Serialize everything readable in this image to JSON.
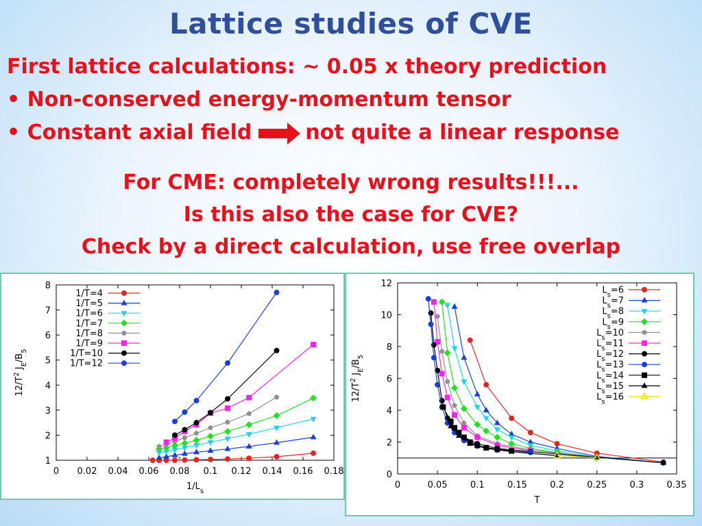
{
  "slide": {
    "title": "Lattice studies of CVE",
    "line1": "First lattice calculations: ~ 0.05 x theory prediction",
    "bullet1": "Non-conserved energy-momentum tensor",
    "bullet2_a": "Constant axial field",
    "bullet2_b": "not quite a linear response",
    "center1": "For CME: completely wrong results!!!...",
    "center2": "Is this also the case for CVE?",
    "center3": "Check by a direct calculation, use free overlap",
    "bullet_symbol": "•",
    "arrow_color": "#e8111b"
  },
  "chart_data": [
    {
      "type": "line",
      "title": "",
      "xlabel": "1/L_s",
      "ylabel": "12/T^2 J_E/B_5",
      "xlim": [
        0,
        0.18
      ],
      "ylim": [
        1,
        8
      ],
      "xticks": [
        0,
        0.02,
        0.04,
        0.06,
        0.08,
        0.1,
        0.12,
        0.14,
        0.16,
        0.18
      ],
      "yticks": [
        1,
        2,
        3,
        4,
        5,
        6,
        7,
        8
      ],
      "legend_position": "top-left",
      "series": [
        {
          "name": "1/T=4",
          "color": "#e0261f",
          "marker": "circle",
          "x": [
            0.0625,
            0.0667,
            0.0714,
            0.0769,
            0.0833,
            0.0909,
            0.1,
            0.1111,
            0.125,
            0.1429,
            0.1667
          ],
          "y": [
            1.0,
            1.0,
            1.0,
            1.0,
            1.01,
            1.02,
            1.03,
            1.05,
            1.08,
            1.14,
            1.28
          ]
        },
        {
          "name": "1/T=5",
          "color": "#1a3fd6",
          "marker": "triangle",
          "x": [
            0.0667,
            0.0714,
            0.0769,
            0.0833,
            0.0909,
            0.1,
            0.1111,
            0.125,
            0.1429,
            0.1667
          ],
          "y": [
            1.1,
            1.14,
            1.2,
            1.26,
            1.32,
            1.38,
            1.45,
            1.55,
            1.7,
            1.92
          ]
        },
        {
          "name": "1/T=6",
          "color": "#1ed2f0",
          "marker": "triangle-down",
          "x": [
            0.0667,
            0.0714,
            0.0769,
            0.0833,
            0.0909,
            0.1,
            0.1111,
            0.125,
            0.1429,
            0.1667
          ],
          "y": [
            1.3,
            1.35,
            1.42,
            1.5,
            1.6,
            1.72,
            1.86,
            2.04,
            2.3,
            2.65
          ]
        },
        {
          "name": "1/T=7",
          "color": "#22e022",
          "marker": "diamond",
          "x": [
            0.0667,
            0.0714,
            0.0769,
            0.0833,
            0.0909,
            0.1,
            0.1111,
            0.125,
            0.1429,
            0.1667
          ],
          "y": [
            1.45,
            1.5,
            1.58,
            1.68,
            1.8,
            1.96,
            2.15,
            2.42,
            2.78,
            3.48
          ]
        },
        {
          "name": "1/T=8",
          "color": "#909090",
          "marker": "pentagon",
          "x": [
            0.0667,
            0.0714,
            0.0769,
            0.0833,
            0.0909,
            0.1,
            0.1111,
            0.125,
            0.1429
          ],
          "y": [
            1.55,
            1.63,
            1.75,
            1.9,
            2.08,
            2.3,
            2.52,
            2.86,
            3.52
          ]
        },
        {
          "name": "1/T=9",
          "color": "#ff22ee",
          "marker": "square",
          "x": [
            0.0714,
            0.0769,
            0.0833,
            0.0909,
            0.1,
            0.1111,
            0.125,
            0.1667
          ],
          "y": [
            1.72,
            1.88,
            2.15,
            2.42,
            2.88,
            3.08,
            3.5,
            5.62
          ]
        },
        {
          "name": "1/T=10",
          "color": "#000000",
          "marker": "circle",
          "x": [
            0.0769,
            0.0833,
            0.0909,
            0.1,
            0.1111,
            0.1429
          ],
          "y": [
            2.0,
            2.22,
            2.5,
            2.9,
            3.45,
            5.38
          ]
        },
        {
          "name": "1/T=12",
          "color": "#1a3fd6",
          "marker": "circle",
          "x": [
            0.0769,
            0.0833,
            0.0909,
            0.1111,
            0.1429
          ],
          "y": [
            2.55,
            2.92,
            3.38,
            4.88,
            7.7
          ]
        }
      ]
    },
    {
      "type": "line",
      "title": "",
      "xlabel": "T",
      "ylabel": "12/T^2 J_E/B_5",
      "xlim": [
        0,
        0.35
      ],
      "ylim": [
        0,
        12
      ],
      "xticks": [
        0,
        0.05,
        0.1,
        0.15,
        0.2,
        0.25,
        0.3,
        0.35
      ],
      "yticks": [
        0,
        2,
        4,
        6,
        8,
        10,
        12
      ],
      "legend_position": "top-right",
      "reference_line": {
        "y": 1,
        "color": "#000000"
      },
      "series": [
        {
          "name": "Ls=6",
          "sub": "s",
          "pre": "L",
          "post": "=6",
          "color": "#e0261f",
          "marker": "circle",
          "x": [
            0.0909,
            0.1111,
            0.1429,
            0.1667,
            0.2,
            0.25,
            0.3333
          ],
          "y": [
            8.4,
            5.6,
            3.5,
            2.6,
            1.9,
            1.3,
            0.75
          ]
        },
        {
          "name": "Ls=7",
          "sub": "s",
          "pre": "L",
          "post": "=7",
          "color": "#1a3fd6",
          "marker": "triangle",
          "x": [
            0.0714,
            0.0833,
            0.1,
            0.1111,
            0.125,
            0.1429,
            0.1667,
            0.2,
            0.25,
            0.3333
          ],
          "y": [
            10.5,
            7.3,
            5.0,
            4.0,
            3.2,
            2.5,
            2.0,
            1.6,
            1.1,
            0.7
          ]
        },
        {
          "name": "Ls=8",
          "sub": "s",
          "pre": "L",
          "post": "=8",
          "color": "#1ed2f0",
          "marker": "triangle-down",
          "x": [
            0.0625,
            0.0714,
            0.0833,
            0.1,
            0.1111,
            0.125,
            0.1429,
            0.1667,
            0.2,
            0.25,
            0.3333
          ],
          "y": [
            10.6,
            7.9,
            5.8,
            4.2,
            3.5,
            2.8,
            2.3,
            1.8,
            1.45,
            1.05,
            0.7
          ]
        },
        {
          "name": "Ls=9",
          "sub": "s",
          "pre": "L",
          "post": "=9",
          "color": "#22e022",
          "marker": "diamond",
          "x": [
            0.0556,
            0.0625,
            0.0714,
            0.0833,
            0.1,
            0.1111,
            0.125,
            0.1429,
            0.1667,
            0.2,
            0.25
          ],
          "y": [
            10.8,
            7.6,
            5.4,
            4.1,
            3.1,
            2.7,
            2.3,
            1.9,
            1.6,
            1.35,
            1.0
          ]
        },
        {
          "name": "Ls=10",
          "sub": "s",
          "pre": "L",
          "post": "=10",
          "color": "#909090",
          "marker": "pentagon",
          "x": [
            0.05,
            0.0556,
            0.0625,
            0.0714,
            0.0833,
            0.1,
            0.125,
            0.1667,
            0.25
          ],
          "y": [
            9.9,
            7.7,
            5.8,
            4.3,
            3.2,
            2.4,
            1.9,
            1.5,
            1.05
          ]
        },
        {
          "name": "Ls=11",
          "sub": "s",
          "pre": "L",
          "post": "=11",
          "color": "#ff22ee",
          "marker": "square",
          "x": [
            0.0455,
            0.05,
            0.0556,
            0.0625,
            0.0714,
            0.0833,
            0.1,
            0.125,
            0.1667
          ],
          "y": [
            10.8,
            8.3,
            6.3,
            4.8,
            3.7,
            2.9,
            2.3,
            1.8,
            1.45
          ]
        },
        {
          "name": "Ls=12",
          "sub": "s",
          "pre": "L",
          "post": "=12",
          "color": "#000000",
          "marker": "circle",
          "x": [
            0.0417,
            0.0455,
            0.05,
            0.0556,
            0.0625,
            0.0714,
            0.0833,
            0.1,
            0.125,
            0.1667,
            0.3333
          ],
          "y": [
            10.1,
            8.1,
            6.5,
            4.6,
            3.5,
            2.8,
            2.3,
            1.9,
            1.6,
            1.4,
            0.7
          ]
        },
        {
          "name": "Ls=13",
          "sub": "s",
          "pre": "L",
          "post": "=13",
          "color": "#1a3fd6",
          "marker": "circle",
          "x": [
            0.0385,
            0.0417,
            0.0455,
            0.05,
            0.0556,
            0.0625,
            0.0714,
            0.0833,
            0.1,
            0.125,
            0.1667
          ],
          "y": [
            11.0,
            9.4,
            7.3,
            5.6,
            4.2,
            3.2,
            2.6,
            2.1,
            1.75,
            1.5,
            1.35
          ]
        },
        {
          "name": "Ls=14",
          "sub": "s",
          "pre": "L",
          "post": "=14",
          "color": "#000000",
          "marker": "square",
          "x": [
            0.0571,
            0.0667,
            0.0714,
            0.0769,
            0.0833,
            0.0909,
            0.1,
            0.1111,
            0.125,
            0.1429
          ],
          "y": [
            4.2,
            3.3,
            2.9,
            2.6,
            2.3,
            2.0,
            1.8,
            1.65,
            1.55,
            1.45
          ]
        },
        {
          "name": "Ls=15",
          "sub": "s",
          "pre": "L",
          "post": "=15",
          "color": "#000000",
          "marker": "triangle",
          "x": [
            0.0667,
            0.0769,
            0.0909,
            0.1111,
            0.1429,
            0.2,
            0.25
          ],
          "y": [
            3.0,
            2.4,
            1.9,
            1.6,
            1.4,
            1.15,
            1.05
          ]
        },
        {
          "name": "Ls=16",
          "sub": "s",
          "pre": "L",
          "post": "=16",
          "color": "#e8e000",
          "marker": "triangle-open",
          "x": [
            0.2,
            0.25
          ],
          "y": [
            1.15,
            1.02
          ]
        }
      ]
    }
  ]
}
